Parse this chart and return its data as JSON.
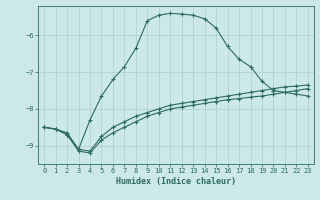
{
  "xlabel": "Humidex (Indice chaleur)",
  "ylabel": "",
  "bg_color": "#cce8e8",
  "line_color": "#2d6b5e",
  "grid_color": "#aacfcf",
  "xlim": [
    -0.5,
    23.5
  ],
  "ylim": [
    -9.5,
    -5.2
  ],
  "yticks": [
    -9,
    -8,
    -7,
    -6
  ],
  "xticks": [
    0,
    1,
    2,
    3,
    4,
    5,
    6,
    7,
    8,
    9,
    10,
    11,
    12,
    13,
    14,
    15,
    16,
    17,
    18,
    19,
    20,
    21,
    22,
    23
  ],
  "series1_x": [
    0,
    1,
    2,
    3,
    4,
    5,
    6,
    7,
    8,
    9,
    10,
    11,
    12,
    13,
    14,
    15,
    16,
    17,
    18,
    19,
    20,
    21,
    22,
    23
  ],
  "series1_y": [
    -8.5,
    -8.55,
    -8.65,
    -9.1,
    -8.3,
    -7.65,
    -7.2,
    -6.85,
    -6.35,
    -5.6,
    -5.45,
    -5.4,
    -5.42,
    -5.45,
    -5.55,
    -5.8,
    -6.3,
    -6.65,
    -6.85,
    -7.25,
    -7.5,
    -7.55,
    -7.6,
    -7.65
  ],
  "series2_x": [
    0,
    1,
    2,
    3,
    4,
    5,
    6,
    7,
    8,
    9,
    10,
    11,
    12,
    13,
    14,
    15,
    16,
    17,
    18,
    19,
    20,
    21,
    22,
    23
  ],
  "series2_y": [
    -8.5,
    -8.55,
    -8.7,
    -9.1,
    -9.15,
    -8.75,
    -8.5,
    -8.35,
    -8.2,
    -8.1,
    -8.0,
    -7.9,
    -7.85,
    -7.8,
    -7.75,
    -7.7,
    -7.65,
    -7.6,
    -7.55,
    -7.5,
    -7.45,
    -7.4,
    -7.38,
    -7.35
  ],
  "series3_x": [
    0,
    1,
    2,
    3,
    4,
    5,
    6,
    7,
    8,
    9,
    10,
    11,
    12,
    13,
    14,
    15,
    16,
    17,
    18,
    19,
    20,
    21,
    22,
    23
  ],
  "series3_y": [
    -8.5,
    -8.55,
    -8.7,
    -9.15,
    -9.2,
    -8.85,
    -8.65,
    -8.5,
    -8.35,
    -8.2,
    -8.1,
    -8.0,
    -7.95,
    -7.9,
    -7.85,
    -7.8,
    -7.75,
    -7.72,
    -7.68,
    -7.65,
    -7.6,
    -7.55,
    -7.5,
    -7.45
  ],
  "marker": "+"
}
